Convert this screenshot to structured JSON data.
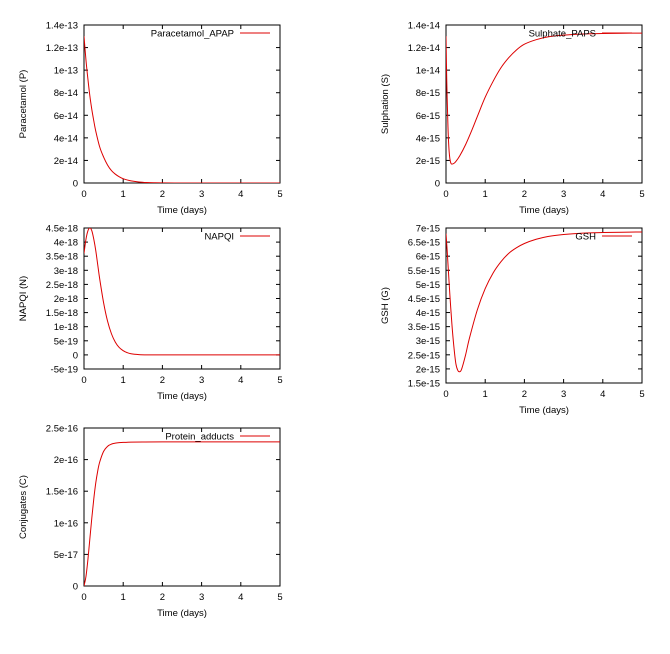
{
  "chart_data": [
    {
      "type": "line",
      "xlabel": "Time (days)",
      "ylabel": "Paracetamol (P)",
      "xlim": [
        0,
        5
      ],
      "ylim": [
        0,
        1.4e-13
      ],
      "xticks": [
        0,
        1,
        2,
        3,
        4,
        5
      ],
      "xtick_labels": [
        "0",
        "1",
        "2",
        "3",
        "4",
        "5"
      ],
      "yticks": [
        0,
        2e-14,
        4e-14,
        6e-14,
        8e-14,
        1e-13,
        1.2e-13,
        1.4e-13
      ],
      "ytick_labels": [
        "0",
        "2e-14",
        "4e-14",
        "6e-14",
        "8e-14",
        "1e-13",
        "1.2e-13",
        "1.4e-13"
      ],
      "legend_position": "top-right",
      "series": [
        {
          "name": "Paracetamol_APAP",
          "color": "#dd0000",
          "x": [
            0,
            0.05,
            0.1,
            0.15,
            0.2,
            0.25,
            0.3,
            0.4,
            0.5,
            0.6,
            0.7,
            0.8,
            0.9,
            1.0,
            1.1,
            1.2,
            1.4,
            1.6,
            1.8,
            2.0,
            2.5,
            3.0,
            4.0,
            5.0
          ],
          "y": [
            1.3e-13,
            1.09e-13,
            9.2e-14,
            7.7e-14,
            6.5e-14,
            5.5e-14,
            4.6e-14,
            3.2e-14,
            2.3e-14,
            1.6e-14,
            1.1e-14,
            7.8e-15,
            5.5e-15,
            3.8e-15,
            2.7e-15,
            1.9e-15,
            9e-16,
            4e-16,
            2e-16,
            1e-16,
            0,
            0,
            0,
            0
          ]
        }
      ]
    },
    {
      "type": "line",
      "xlabel": "Time (days)",
      "ylabel": "Sulphation (S)",
      "xlim": [
        0,
        5
      ],
      "ylim": [
        0,
        1.4e-14
      ],
      "xticks": [
        0,
        1,
        2,
        3,
        4,
        5
      ],
      "xtick_labels": [
        "0",
        "1",
        "2",
        "3",
        "4",
        "5"
      ],
      "yticks": [
        0,
        2e-15,
        4e-15,
        6e-15,
        8e-15,
        1e-14,
        1.2e-14,
        1.4e-14
      ],
      "ytick_labels": [
        "0",
        "2e-15",
        "4e-15",
        "6e-15",
        "8e-15",
        "1e-14",
        "1.2e-14",
        "1.4e-14"
      ],
      "legend_position": "top-right",
      "series": [
        {
          "name": "Sulphate_PAPS",
          "color": "#dd0000",
          "x": [
            0,
            0.02,
            0.05,
            0.08,
            0.12,
            0.18,
            0.25,
            0.35,
            0.5,
            0.65,
            0.8,
            1.0,
            1.2,
            1.4,
            1.6,
            1.8,
            2.0,
            2.3,
            2.6,
            3.0,
            3.5,
            4.0,
            4.5,
            5.0
          ],
          "y": [
            1.3e-14,
            9e-15,
            5e-15,
            2.8e-15,
            1.8e-15,
            1.7e-15,
            1.9e-15,
            2.4e-15,
            3.4e-15,
            4.6e-15,
            5.9e-15,
            7.6e-15,
            9e-15,
            1.02e-14,
            1.11e-14,
            1.18e-14,
            1.23e-14,
            1.27e-14,
            1.295e-14,
            1.31e-14,
            1.32e-14,
            1.325e-14,
            1.327e-14,
            1.328e-14
          ]
        }
      ]
    },
    {
      "type": "line",
      "xlabel": "Time (days)",
      "ylabel": "NAPQI (N)",
      "xlim": [
        0,
        5
      ],
      "ylim": [
        -5e-19,
        4.5e-18
      ],
      "xticks": [
        0,
        1,
        2,
        3,
        4,
        5
      ],
      "xtick_labels": [
        "0",
        "1",
        "2",
        "3",
        "4",
        "5"
      ],
      "yticks": [
        -5e-19,
        0,
        5e-19,
        1e-18,
        1.5e-18,
        2e-18,
        2.5e-18,
        3e-18,
        3.5e-18,
        4e-18,
        4.5e-18
      ],
      "ytick_labels": [
        "-5e-19",
        "0",
        "5e-19",
        "1e-18",
        "1.5e-18",
        "2e-18",
        "2.5e-18",
        "3e-18",
        "3.5e-18",
        "4e-18",
        "4.5e-18"
      ],
      "legend_position": "top-right",
      "series": [
        {
          "name": "NAPQI",
          "color": "#dd0000",
          "x": [
            0,
            0.05,
            0.1,
            0.15,
            0.2,
            0.25,
            0.3,
            0.35,
            0.4,
            0.5,
            0.6,
            0.7,
            0.8,
            0.9,
            1.0,
            1.1,
            1.2,
            1.4,
            1.6,
            2.0,
            3.0,
            4.0,
            5.0
          ],
          "y": [
            3.6e-18,
            4.1e-18,
            4.4e-18,
            4.5e-18,
            4.4e-18,
            4.1e-18,
            3.7e-18,
            3.2e-18,
            2.7e-18,
            1.85e-18,
            1.2e-18,
            7.5e-19,
            4.5e-19,
            2.6e-19,
            1.5e-19,
            8e-20,
            4e-20,
            1e-20,
            0,
            0,
            0,
            0,
            0
          ]
        }
      ]
    },
    {
      "type": "line",
      "xlabel": "Time (days)",
      "ylabel": "GSH (G)",
      "xlim": [
        0,
        5
      ],
      "ylim": [
        1.5e-15,
        7e-15
      ],
      "xticks": [
        0,
        1,
        2,
        3,
        4,
        5
      ],
      "xtick_labels": [
        "0",
        "1",
        "2",
        "3",
        "4",
        "5"
      ],
      "yticks": [
        1.5e-15,
        2e-15,
        2.5e-15,
        3e-15,
        3.5e-15,
        4e-15,
        4.5e-15,
        5e-15,
        5.5e-15,
        6e-15,
        6.5e-15,
        7e-15
      ],
      "ytick_labels": [
        "1.5e-15",
        "2e-15",
        "2.5e-15",
        "3e-15",
        "3.5e-15",
        "4e-15",
        "4.5e-15",
        "5e-15",
        "5.5e-15",
        "6e-15",
        "6.5e-15",
        "7e-15"
      ],
      "legend_position": "top-right",
      "series": [
        {
          "name": "GSH",
          "color": "#dd0000",
          "x": [
            0,
            0.03,
            0.06,
            0.1,
            0.15,
            0.2,
            0.25,
            0.3,
            0.35,
            0.4,
            0.5,
            0.6,
            0.8,
            1.0,
            1.2,
            1.4,
            1.6,
            1.8,
            2.0,
            2.3,
            2.6,
            3.0,
            3.5,
            4.0,
            4.5,
            5.0
          ],
          "y": [
            6.8e-15,
            6.2e-15,
            5.5e-15,
            4.6e-15,
            3.6e-15,
            2.8e-15,
            2.2e-15,
            1.95e-15,
            1.9e-15,
            2e-15,
            2.5e-15,
            3.1e-15,
            4.1e-15,
            4.85e-15,
            5.4e-15,
            5.8e-15,
            6.1e-15,
            6.3e-15,
            6.45e-15,
            6.6e-15,
            6.7e-15,
            6.77e-15,
            6.82e-15,
            6.84e-15,
            6.85e-15,
            6.86e-15
          ]
        }
      ]
    },
    {
      "type": "line",
      "xlabel": "Time (days)",
      "ylabel": "Conjugates (C)",
      "xlim": [
        0,
        5
      ],
      "ylim": [
        0,
        2.5e-16
      ],
      "xticks": [
        0,
        1,
        2,
        3,
        4,
        5
      ],
      "xtick_labels": [
        "0",
        "1",
        "2",
        "3",
        "4",
        "5"
      ],
      "yticks": [
        0,
        5e-17,
        1e-16,
        1.5e-16,
        2e-16,
        2.5e-16
      ],
      "ytick_labels": [
        "0",
        "5e-17",
        "1e-16",
        "1.5e-16",
        "2e-16",
        "2.5e-16"
      ],
      "legend_position": "top-right",
      "series": [
        {
          "name": "Protein_adducts",
          "color": "#dd0000",
          "x": [
            0,
            0.05,
            0.1,
            0.15,
            0.2,
            0.25,
            0.3,
            0.35,
            0.4,
            0.5,
            0.6,
            0.7,
            0.8,
            0.9,
            1.0,
            1.2,
            1.5,
            2.0,
            3.0,
            4.0,
            5.0
          ],
          "y": [
            0,
            1.5e-17,
            4.2e-17,
            7.5e-17,
            1.08e-16,
            1.38e-16,
            1.63e-16,
            1.82e-16,
            1.96e-16,
            2.13e-16,
            2.21e-16,
            2.245e-16,
            2.26e-16,
            2.268e-16,
            2.272e-16,
            2.276e-16,
            2.278e-16,
            2.28e-16,
            2.28e-16,
            2.28e-16,
            2.28e-16
          ]
        }
      ]
    }
  ]
}
